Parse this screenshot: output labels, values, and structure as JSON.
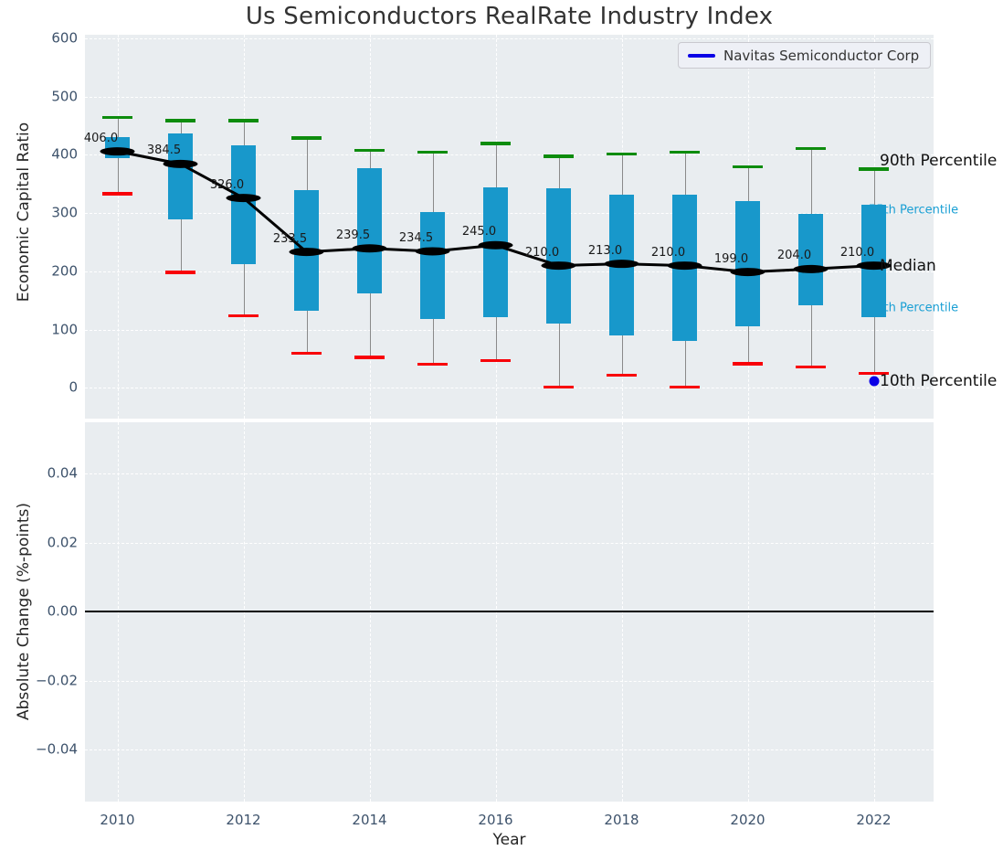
{
  "title": "Us Semiconductors RealRate Industry Index",
  "legend": {
    "label": "Navitas Semiconductor Corp"
  },
  "axes": {
    "top": {
      "ylabel": "Economic Capital Ratio",
      "yticks": [
        600,
        500,
        400,
        300,
        200,
        100,
        0
      ]
    },
    "bottom": {
      "ylabel": "Absolute Change (%-points)",
      "yticks": [
        {
          "label": "0.04",
          "value": 0.04
        },
        {
          "label": "0.02",
          "value": 0.02
        },
        {
          "label": "0.00",
          "value": 0.0
        },
        {
          "label": "−0.02",
          "value": -0.02
        },
        {
          "label": "−0.04",
          "value": -0.04
        }
      ],
      "zero_line_value": 0.0
    },
    "x": {
      "label": "Year",
      "ticks": [
        2010,
        2012,
        2014,
        2016,
        2018,
        2020,
        2022
      ]
    }
  },
  "chart_data": {
    "type": "boxplot+line",
    "title": "Us Semiconductors RealRate Industry Index",
    "xlabel": "Year",
    "ylabel_top": "Economic Capital Ratio",
    "ylabel_bottom": "Absolute Change (%-points)",
    "top_ylim": [
      -50,
      600
    ],
    "bottom_ylim": [
      -0.055,
      0.055
    ],
    "grid": "white-dashed",
    "legend_position": "upper right",
    "years": [
      2010,
      2011,
      2012,
      2013,
      2014,
      2015,
      2016,
      2017,
      2018,
      2019,
      2020,
      2021,
      2022
    ],
    "boxes": [
      {
        "year": 2010,
        "p10": 334,
        "p25": 394,
        "median": 406.0,
        "p75": 431,
        "p90": 465,
        "label": "406.0"
      },
      {
        "year": 2011,
        "p10": 199,
        "p25": 289,
        "median": 384.5,
        "p75": 437,
        "p90": 459,
        "label": "384.5"
      },
      {
        "year": 2012,
        "p10": 124,
        "p25": 213,
        "median": 326.0,
        "p75": 417,
        "p90": 459,
        "label": "326.0"
      },
      {
        "year": 2013,
        "p10": 60,
        "p25": 132,
        "median": 233.5,
        "p75": 339,
        "p90": 429,
        "label": "233.5"
      },
      {
        "year": 2014,
        "p10": 53,
        "p25": 163,
        "median": 239.5,
        "p75": 378,
        "p90": 408,
        "label": "239.5"
      },
      {
        "year": 2015,
        "p10": 41,
        "p25": 119,
        "median": 234.5,
        "p75": 302,
        "p90": 405,
        "label": "234.5"
      },
      {
        "year": 2016,
        "p10": 47,
        "p25": 121,
        "median": 245.0,
        "p75": 345,
        "p90": 420,
        "label": "245.0"
      },
      {
        "year": 2017,
        "p10": 2,
        "p25": 111,
        "median": 210.0,
        "p75": 342,
        "p90": 398,
        "label": "210.0"
      },
      {
        "year": 2018,
        "p10": 22,
        "p25": 90,
        "median": 213.0,
        "p75": 331,
        "p90": 402,
        "label": "213.0"
      },
      {
        "year": 2019,
        "p10": 2,
        "p25": 80,
        "median": 210.0,
        "p75": 332,
        "p90": 405,
        "label": "210.0"
      },
      {
        "year": 2020,
        "p10": 42,
        "p25": 106,
        "median": 199.0,
        "p75": 321,
        "p90": 380,
        "label": "199.0"
      },
      {
        "year": 2021,
        "p10": 36,
        "p25": 142,
        "median": 204.0,
        "p75": 298,
        "p90": 411,
        "label": "204.0"
      },
      {
        "year": 2022,
        "p10": 25,
        "p25": 121,
        "median": 210.0,
        "p75": 314,
        "p90": 376,
        "label": "210.0"
      }
    ],
    "median_line": {
      "name": "Median",
      "x": [
        2010,
        2011,
        2012,
        2013,
        2014,
        2015,
        2016,
        2017,
        2018,
        2019,
        2020,
        2021,
        2022
      ],
      "values": [
        406.0,
        384.5,
        326.0,
        233.5,
        239.5,
        234.5,
        245.0,
        210.0,
        213.0,
        210.0,
        199.0,
        204.0,
        210.0
      ]
    },
    "series": [
      {
        "name": "Navitas Semiconductor Corp",
        "points": [
          {
            "year": 2022,
            "value": 11
          }
        ]
      }
    ],
    "right_labels": [
      {
        "text": "90th Percentile",
        "value": 390,
        "style": "lg"
      },
      {
        "text": "75th Percentile",
        "value": 305,
        "style": "sm"
      },
      {
        "text": "Median",
        "value": 210,
        "style": "lg"
      },
      {
        "text": "25th Percentile",
        "value": 137,
        "style": "sm"
      },
      {
        "text": "10th Percentile",
        "value": 12,
        "style": "lg"
      }
    ],
    "colors": {
      "box_fill": "#1898cb",
      "p90_cap": "#0d8c0d",
      "p10_cap": "#f80008",
      "whisker": "#8a8a8a",
      "median_line": "#000000",
      "navitas_point": "#0b00e6",
      "percentile_label_cyan": "#199fd4",
      "panel_background": "#e9edf0"
    }
  }
}
